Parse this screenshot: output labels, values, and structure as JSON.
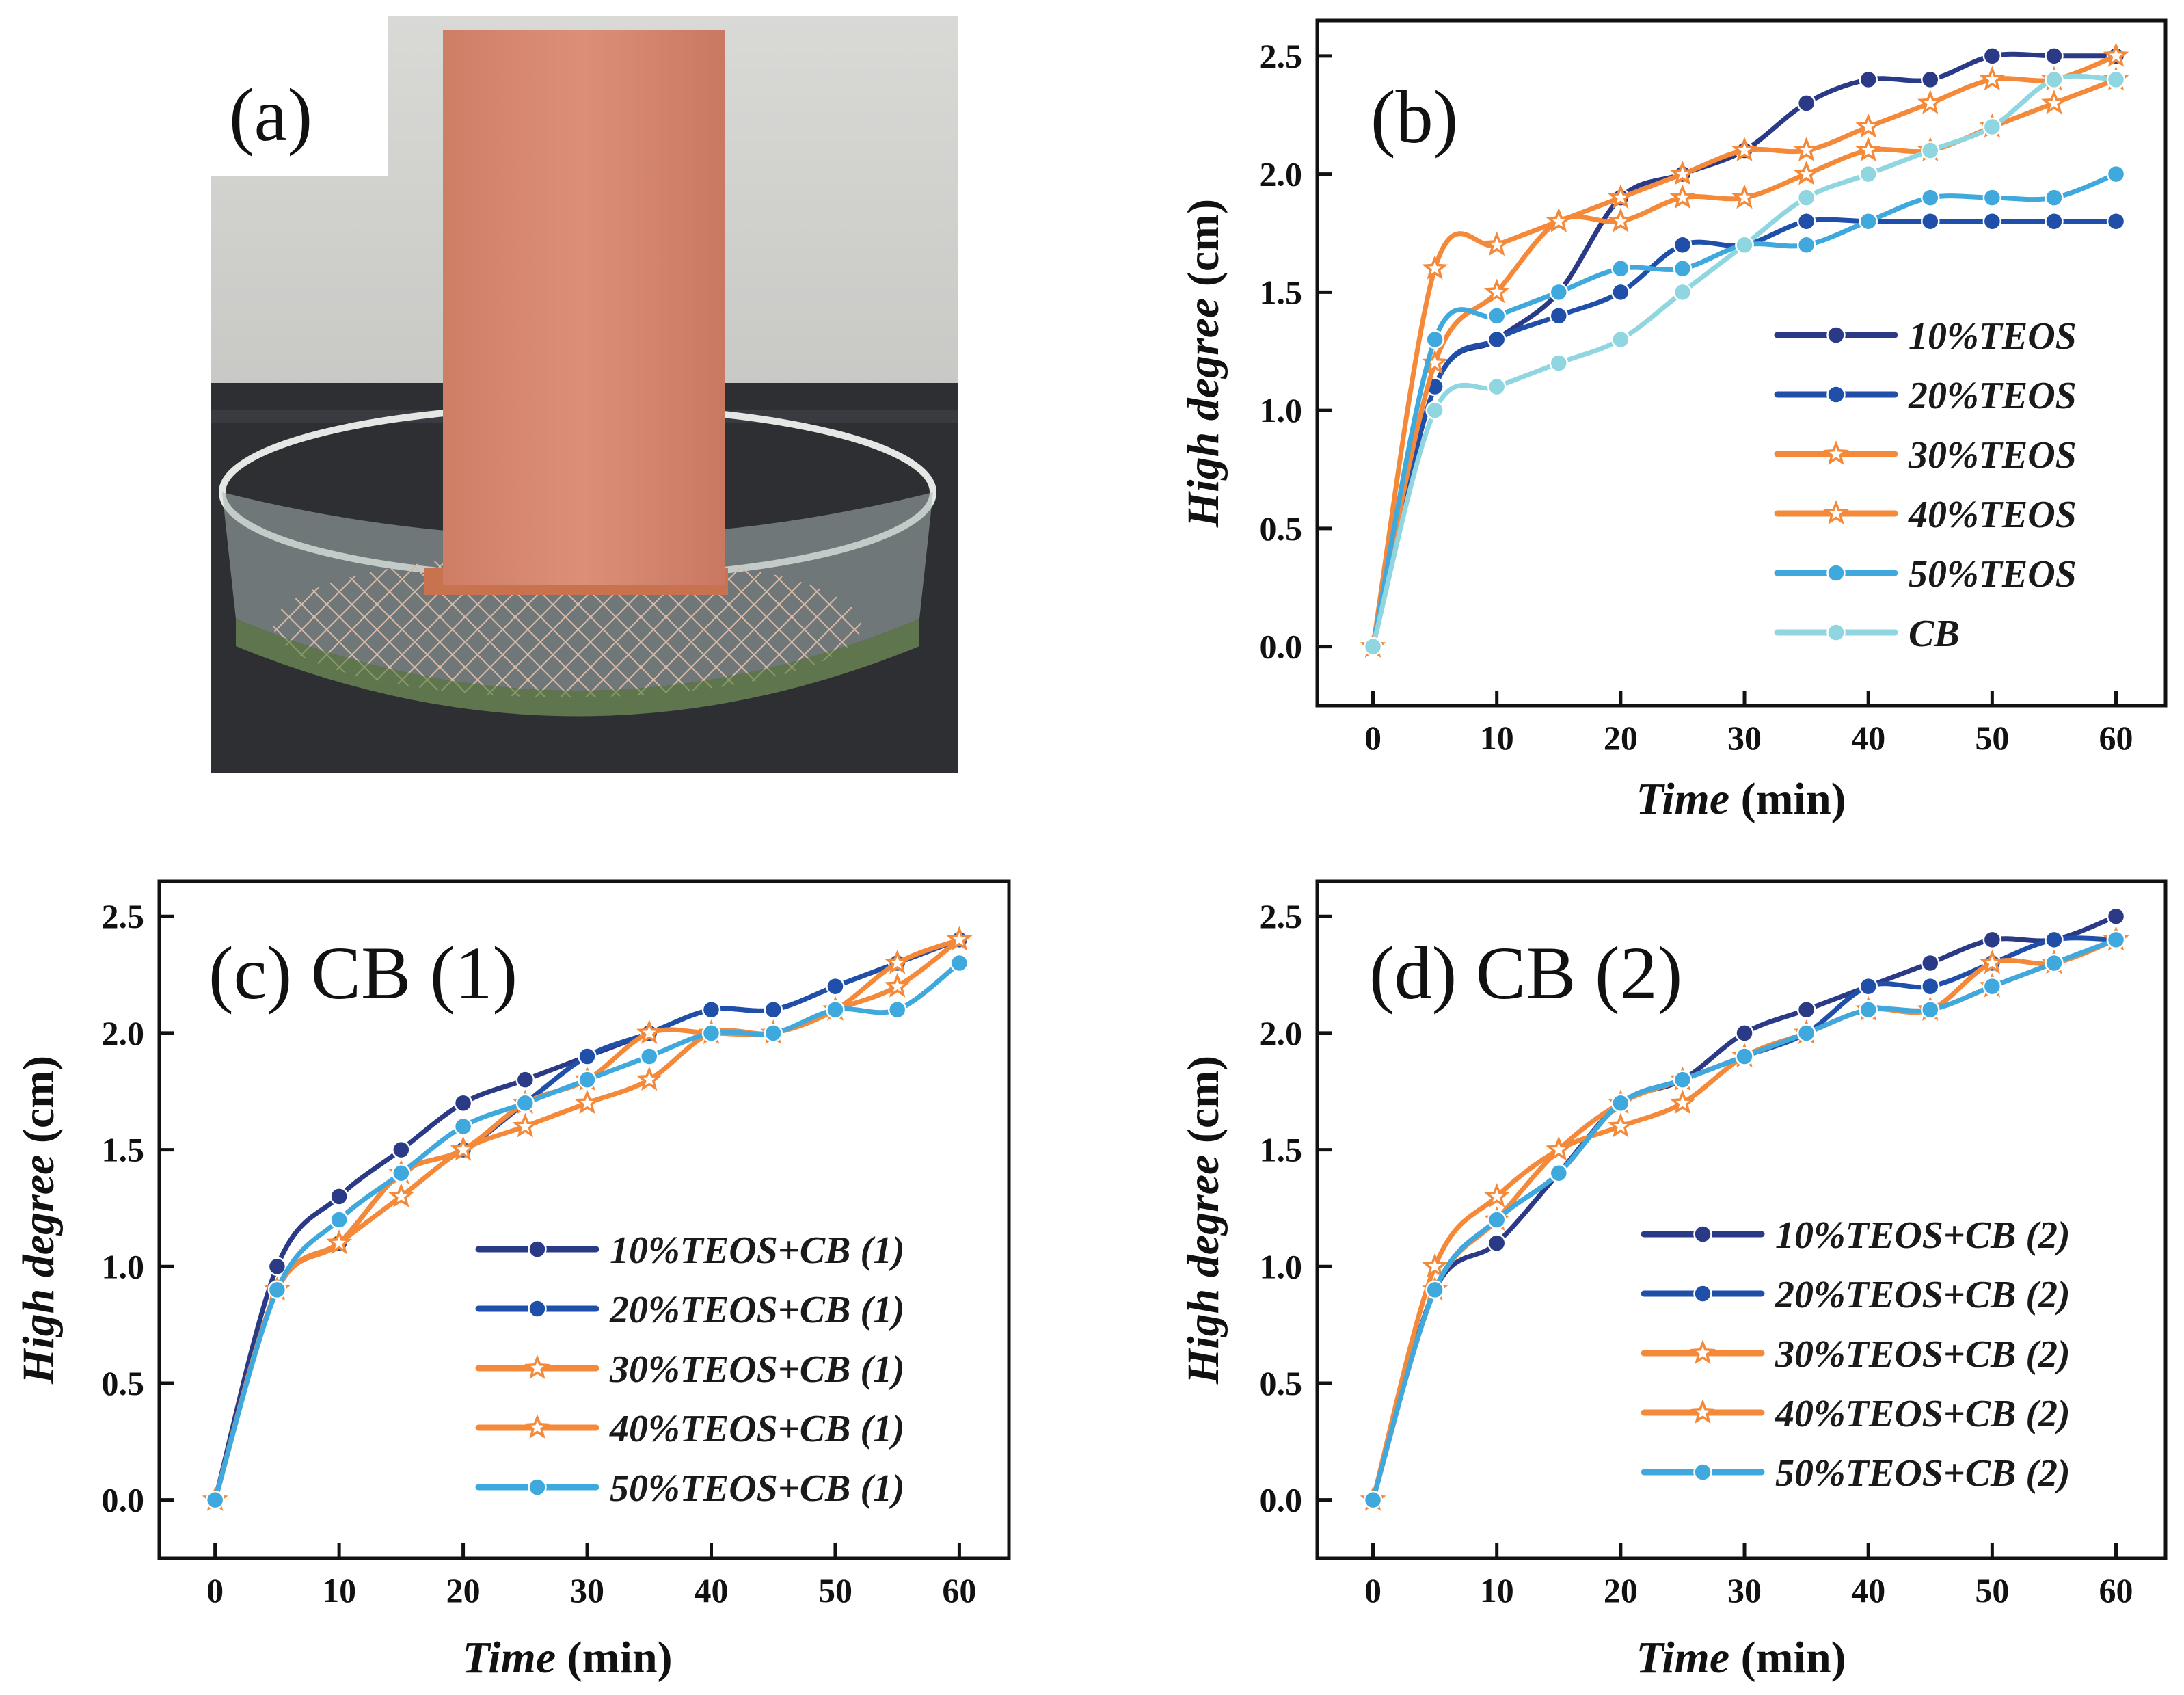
{
  "figure": {
    "panel_a": {
      "label": "(a)"
    },
    "panels": [
      {
        "id": "b",
        "label": "(b)"
      },
      {
        "id": "c",
        "label": "(c) CB (1)"
      },
      {
        "id": "d",
        "label": "(d) CB (2)"
      }
    ]
  },
  "chart_data": [
    {
      "panel": "b",
      "type": "line",
      "title": "(b)",
      "xlabel": "Time (min)",
      "xlabel_italic": "Time",
      "xlabel_unit": " (min)",
      "ylabel": "High degree (cm)",
      "ylabel_italic": "High degree",
      "ylabel_unit": " (cm)",
      "xlim": [
        -4.5,
        64
      ],
      "ylim": [
        -0.25,
        2.65
      ],
      "xticks": [
        0,
        10,
        20,
        30,
        40,
        50,
        60
      ],
      "yticks": [
        0.0,
        0.5,
        1.0,
        1.5,
        2.0,
        2.5
      ],
      "ytick_labels": [
        "0.0",
        "0.5",
        "1.0",
        "1.5",
        "2.0",
        "2.5"
      ],
      "legend_position": "center-right",
      "x": [
        0,
        5,
        10,
        15,
        20,
        25,
        30,
        35,
        40,
        45,
        50,
        55,
        60
      ],
      "series": [
        {
          "name": "10%TEOS",
          "color": "#2b3a86",
          "marker": "circle",
          "values": [
            0,
            1.1,
            1.3,
            1.5,
            1.9,
            2.0,
            2.1,
            2.3,
            2.4,
            2.4,
            2.5,
            2.5,
            2.5
          ]
        },
        {
          "name": "20%TEOS",
          "color": "#1f4fa8",
          "marker": "circle",
          "values": [
            0,
            1.1,
            1.3,
            1.4,
            1.5,
            1.7,
            1.7,
            1.8,
            1.8,
            1.8,
            1.8,
            1.8,
            1.8
          ]
        },
        {
          "name": "30%TEOS",
          "color": "#f5893a",
          "marker": "star",
          "values": [
            0,
            1.6,
            1.7,
            1.8,
            1.9,
            2.0,
            2.1,
            2.1,
            2.2,
            2.3,
            2.4,
            2.4,
            2.5
          ]
        },
        {
          "name": "40%TEOS",
          "color": "#f5893a",
          "marker": "star",
          "values": [
            0,
            1.2,
            1.5,
            1.8,
            1.8,
            1.9,
            1.9,
            2.0,
            2.1,
            2.1,
            2.2,
            2.3,
            2.4
          ]
        },
        {
          "name": "50%TEOS",
          "color": "#3fa9dd",
          "marker": "circle",
          "values": [
            0,
            1.3,
            1.4,
            1.5,
            1.6,
            1.6,
            1.7,
            1.7,
            1.8,
            1.9,
            1.9,
            1.9,
            2.0
          ]
        },
        {
          "name": "CB",
          "color": "#8fd6e0",
          "marker": "circle",
          "values": [
            0,
            1.0,
            1.1,
            1.2,
            1.3,
            1.5,
            1.7,
            1.9,
            2.0,
            2.1,
            2.2,
            2.4,
            2.4
          ]
        }
      ]
    },
    {
      "panel": "c",
      "type": "line",
      "title": "(c) CB (1)",
      "xlabel": "Time (min)",
      "xlabel_italic": "Time",
      "xlabel_unit": " (min)",
      "ylabel": "High degree (cm)",
      "ylabel_italic": "High degree",
      "ylabel_unit": " (cm)",
      "xlim": [
        -4.5,
        64
      ],
      "ylim": [
        -0.25,
        2.65
      ],
      "xticks": [
        0,
        10,
        20,
        30,
        40,
        50,
        60
      ],
      "yticks": [
        0.0,
        0.5,
        1.0,
        1.5,
        2.0,
        2.5
      ],
      "ytick_labels": [
        "0.0",
        "0.5",
        "1.0",
        "1.5",
        "2.0",
        "2.5"
      ],
      "legend_position": "lower-right",
      "x": [
        0,
        5,
        10,
        15,
        20,
        25,
        30,
        35,
        40,
        45,
        50,
        55,
        60
      ],
      "series": [
        {
          "name": "10%TEOS+CB (1)",
          "color": "#2b3a86",
          "marker": "circle",
          "values": [
            0,
            1.0,
            1.3,
            1.5,
            1.7,
            1.8,
            1.9,
            2.0,
            2.1,
            2.1,
            2.2,
            2.3,
            2.4
          ]
        },
        {
          "name": "20%TEOS+CB (1)",
          "color": "#1f4fa8",
          "marker": "circle",
          "values": [
            0,
            0.9,
            1.1,
            1.4,
            1.5,
            1.7,
            1.9,
            2.0,
            2.1,
            2.1,
            2.2,
            2.3,
            2.4
          ]
        },
        {
          "name": "30%TEOS+CB (1)",
          "color": "#f5893a",
          "marker": "star",
          "values": [
            0,
            0.9,
            1.1,
            1.3,
            1.5,
            1.6,
            1.7,
            1.8,
            2.0,
            2.0,
            2.1,
            2.2,
            2.4
          ]
        },
        {
          "name": "40%TEOS+CB (1)",
          "color": "#f5893a",
          "marker": "star",
          "values": [
            0,
            0.9,
            1.1,
            1.4,
            1.5,
            1.7,
            1.8,
            2.0,
            2.0,
            2.0,
            2.1,
            2.3,
            2.4
          ]
        },
        {
          "name": "50%TEOS+CB (1)",
          "color": "#3fa9dd",
          "marker": "circle",
          "values": [
            0,
            0.9,
            1.2,
            1.4,
            1.6,
            1.7,
            1.8,
            1.9,
            2.0,
            2.0,
            2.1,
            2.1,
            2.3
          ]
        }
      ]
    },
    {
      "panel": "d",
      "type": "line",
      "title": "(d) CB (2)",
      "xlabel": "Time (min)",
      "xlabel_italic": "Time",
      "xlabel_unit": " (min)",
      "ylabel": "High degree (cm)",
      "ylabel_italic": "High degree",
      "ylabel_unit": " (cm)",
      "xlim": [
        -4.5,
        64
      ],
      "ylim": [
        -0.25,
        2.65
      ],
      "xticks": [
        0,
        10,
        20,
        30,
        40,
        50,
        60
      ],
      "yticks": [
        0.0,
        0.5,
        1.0,
        1.5,
        2.0,
        2.5
      ],
      "ytick_labels": [
        "0.0",
        "0.5",
        "1.0",
        "1.5",
        "2.0",
        "2.5"
      ],
      "legend_position": "lower-right",
      "x": [
        0,
        5,
        10,
        15,
        20,
        25,
        30,
        35,
        40,
        45,
        50,
        55,
        60
      ],
      "series": [
        {
          "name": "10%TEOS+CB (2)",
          "color": "#2b3a86",
          "marker": "circle",
          "values": [
            0,
            0.9,
            1.1,
            1.4,
            1.7,
            1.8,
            2.0,
            2.1,
            2.2,
            2.3,
            2.4,
            2.4,
            2.5
          ]
        },
        {
          "name": "20%TEOS+CB (2)",
          "color": "#1f4fa8",
          "marker": "circle",
          "values": [
            0,
            0.9,
            1.2,
            1.4,
            1.7,
            1.8,
            1.9,
            2.0,
            2.2,
            2.2,
            2.3,
            2.4,
            2.4
          ]
        },
        {
          "name": "30%TEOS+CB (2)",
          "color": "#f5893a",
          "marker": "star",
          "values": [
            0,
            1.0,
            1.3,
            1.5,
            1.6,
            1.7,
            1.9,
            2.0,
            2.1,
            2.1,
            2.3,
            2.3,
            2.4
          ]
        },
        {
          "name": "40%TEOS+CB (2)",
          "color": "#f5893a",
          "marker": "star",
          "values": [
            0,
            0.9,
            1.2,
            1.5,
            1.7,
            1.8,
            1.9,
            2.0,
            2.1,
            2.1,
            2.2,
            2.3,
            2.4
          ]
        },
        {
          "name": "50%TEOS+CB (2)",
          "color": "#3fa9dd",
          "marker": "circle",
          "values": [
            0,
            0.9,
            1.2,
            1.4,
            1.7,
            1.8,
            1.9,
            2.0,
            2.1,
            2.1,
            2.2,
            2.3,
            2.4
          ]
        }
      ]
    }
  ]
}
